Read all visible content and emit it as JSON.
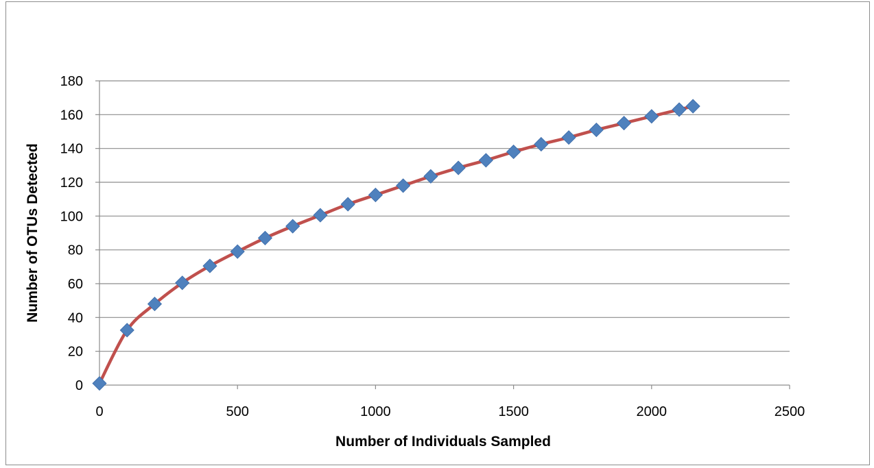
{
  "chart_data": {
    "type": "scatter",
    "xlabel": "Number of Individuals Sampled",
    "ylabel": "Number of OTUs Detected",
    "xlim": [
      0,
      2500
    ],
    "ylim": [
      0,
      180
    ],
    "x_ticks": [
      0,
      500,
      1000,
      1500,
      2000,
      2500
    ],
    "y_ticks": [
      0,
      20,
      40,
      60,
      80,
      100,
      120,
      140,
      160,
      180
    ],
    "grid": "horizontal",
    "legend": "none",
    "series": [
      {
        "x": [
          0,
          100,
          200,
          300,
          400,
          500,
          600,
          700,
          800,
          900,
          1000,
          1100,
          1200,
          1300,
          1400,
          1500,
          1600,
          1700,
          1800,
          1900,
          2000,
          2100,
          2150
        ],
        "y": [
          1,
          32.5,
          48,
          60.5,
          70.5,
          79,
          87,
          94,
          100.5,
          107,
          112.5,
          118,
          123.5,
          128.5,
          133,
          138,
          142.5,
          146.5,
          151,
          155,
          159,
          163,
          165
        ],
        "line_color": "#c0504d",
        "marker": "diamond",
        "marker_color": "#4f81bd",
        "smooth": true
      }
    ]
  }
}
